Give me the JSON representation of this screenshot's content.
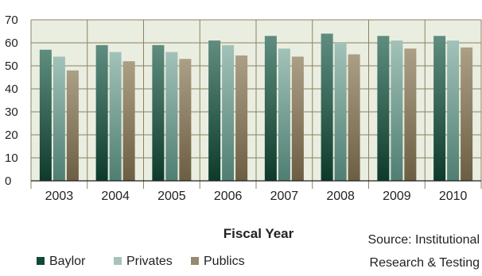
{
  "chart_data": {
    "type": "bar",
    "title": "",
    "xlabel": "Fiscal Year",
    "ylabel": "",
    "ylim": [
      0,
      70
    ],
    "yticks": [
      0,
      10,
      20,
      30,
      40,
      50,
      60,
      70
    ],
    "categories": [
      "2003",
      "2004",
      "2005",
      "2006",
      "2007",
      "2008",
      "2009",
      "2010"
    ],
    "series": [
      {
        "name": "Baylor",
        "color": "#2f6e5a",
        "values": [
          57,
          59,
          59,
          61,
          63,
          64,
          63,
          63
        ]
      },
      {
        "name": "Privates",
        "color": "#9bbcb3",
        "values": [
          54,
          56,
          56,
          59,
          57.5,
          60,
          61,
          61
        ]
      },
      {
        "name": "Publics",
        "color": "#978a70",
        "values": [
          48,
          52,
          53,
          54.5,
          54,
          55,
          57.5,
          58
        ]
      }
    ],
    "grid": true,
    "legend": "bottom-left",
    "source": {
      "line1": "Source: Institutional",
      "line2": "Research & Testing"
    }
  }
}
